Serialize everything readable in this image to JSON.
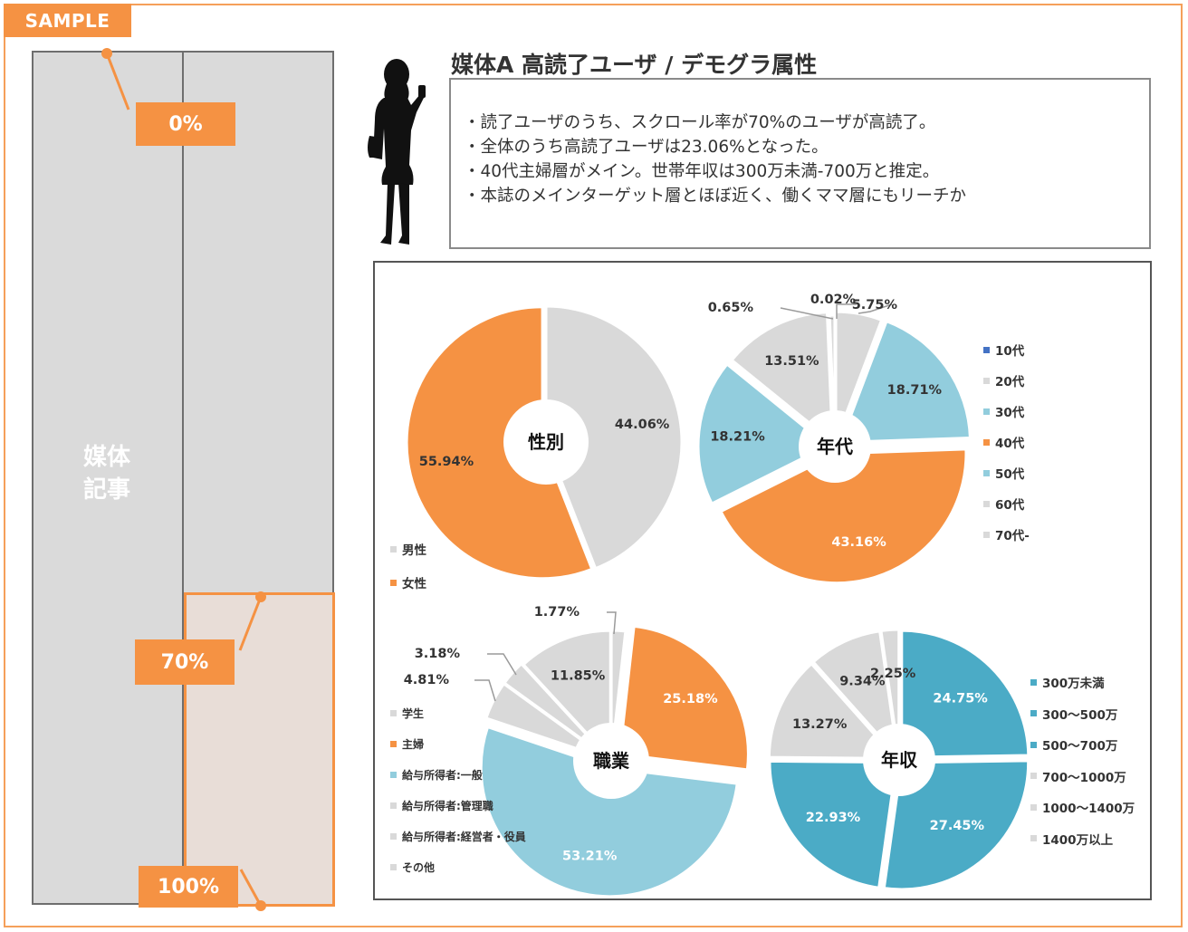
{
  "sample_tag": "SAMPLE",
  "article": {
    "label_line1": "媒体",
    "label_line2": "記事"
  },
  "scroll_markers": {
    "p0": "0%",
    "p70": "70%",
    "p100": "100%"
  },
  "title": "媒体A 高読了ユーザ / デモグラ属性",
  "summary": [
    "・読了ユーザのうち、スクロール率が70%のユーザが高読了。",
    "・全体のうち高読了ユーザは23.06%となった。",
    "・40代主婦層がメイン。世帯年収は300万未満-700万と推定。",
    "・本誌のメインターゲット層とほぼ近く、働くママ層にもリーチか"
  ],
  "colors": {
    "orange": "#f59243",
    "gray": "#d9d9d9",
    "lightblue": "#92cddd",
    "teal": "#4babc6",
    "navy": "#4472c4"
  },
  "chart_data": [
    {
      "type": "pie",
      "title": "性別",
      "slices": [
        {
          "name": "男性",
          "value": 44.06,
          "label": "44.06%",
          "color": "#d9d9d9"
        },
        {
          "name": "女性",
          "value": 55.94,
          "label": "55.94%",
          "color": "#f59243"
        }
      ]
    },
    {
      "type": "pie",
      "title": "年代",
      "slices": [
        {
          "name": "10代",
          "value": 0.0,
          "label": "",
          "color": "#4472c4"
        },
        {
          "name": "20代",
          "value": 5.75,
          "label": "5.75%",
          "color": "#d9d9d9"
        },
        {
          "name": "30代",
          "value": 18.71,
          "label": "18.71%",
          "color": "#92cddd"
        },
        {
          "name": "40代",
          "value": 43.16,
          "label": "43.16%",
          "color": "#f59243"
        },
        {
          "name": "50代",
          "value": 18.21,
          "label": "18.21%",
          "color": "#92cddd"
        },
        {
          "name": "60代",
          "value": 13.51,
          "label": "13.51%",
          "color": "#d9d9d9"
        },
        {
          "name": "70代-",
          "value": 0.65,
          "label": "0.65%",
          "color": "#d9d9d9"
        }
      ],
      "extra_labels": [
        "0.02%"
      ]
    },
    {
      "type": "pie",
      "title": "職業",
      "slices": [
        {
          "name": "学生",
          "value": 1.77,
          "label": "1.77%",
          "color": "#d9d9d9"
        },
        {
          "name": "主婦",
          "value": 25.18,
          "label": "25.18%",
          "color": "#f59243"
        },
        {
          "name": "給与所得者:一般",
          "value": 53.21,
          "label": "53.21%",
          "color": "#92cddd"
        },
        {
          "name": "給与所得者:管理職",
          "value": 4.81,
          "label": "4.81%",
          "color": "#d9d9d9"
        },
        {
          "name": "給与所得者:経営者・役員",
          "value": 3.18,
          "label": "3.18%",
          "color": "#d9d9d9"
        },
        {
          "name": "その他",
          "value": 11.85,
          "label": "11.85%",
          "color": "#d9d9d9"
        }
      ]
    },
    {
      "type": "pie",
      "title": "年収",
      "slices": [
        {
          "name": "300万未満",
          "value": 24.75,
          "label": "24.75%",
          "color": "#4babc6"
        },
        {
          "name": "300～500万",
          "value": 27.45,
          "label": "27.45%",
          "color": "#4babc6"
        },
        {
          "name": "500～700万",
          "value": 22.93,
          "label": "22.93%",
          "color": "#4babc6"
        },
        {
          "name": "700～1000万",
          "value": 13.27,
          "label": "13.27%",
          "color": "#d9d9d9"
        },
        {
          "name": "1000～1400万",
          "value": 9.34,
          "label": "9.34%",
          "color": "#d9d9d9"
        },
        {
          "name": "1400万以上",
          "value": 2.25,
          "label": "2.25%",
          "color": "#d9d9d9"
        }
      ]
    }
  ]
}
